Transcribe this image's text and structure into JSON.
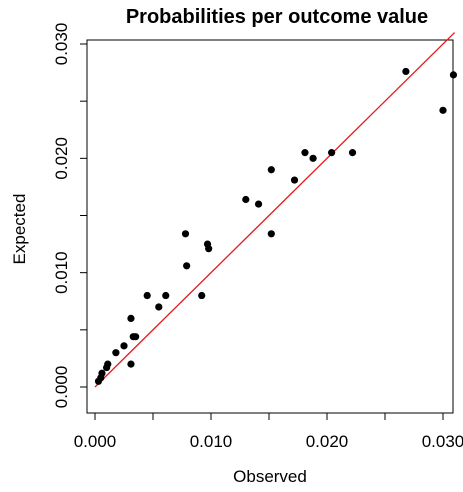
{
  "chart_data": {
    "type": "scatter",
    "title": "Probabilities per outcome value",
    "xlabel": "Observed",
    "ylabel": "Expected",
    "xlim": [
      0,
      0.031
    ],
    "ylim": [
      0,
      0.03
    ],
    "x_ticks": [
      "0.000",
      "0.010",
      "0.020",
      "0.030"
    ],
    "y_ticks": [
      "0.000",
      "0.010",
      "0.020",
      "0.030"
    ],
    "x_tick_minor": [
      0.005,
      0.015,
      0.025
    ],
    "y_tick_minor": [
      0.005,
      0.015,
      0.025
    ],
    "grid": false,
    "reference_line": {
      "from": [
        0,
        0
      ],
      "to": [
        0.031,
        0.031
      ],
      "color": "#e31a1c"
    },
    "point_color": "#000000",
    "points": [
      {
        "x": 0.0003,
        "y": 0.0005
      },
      {
        "x": 0.0005,
        "y": 0.0008
      },
      {
        "x": 0.0006,
        "y": 0.0012
      },
      {
        "x": 0.001,
        "y": 0.0017
      },
      {
        "x": 0.0011,
        "y": 0.002
      },
      {
        "x": 0.0018,
        "y": 0.003
      },
      {
        "x": 0.0025,
        "y": 0.0036
      },
      {
        "x": 0.0031,
        "y": 0.002
      },
      {
        "x": 0.0031,
        "y": 0.006
      },
      {
        "x": 0.0033,
        "y": 0.0044
      },
      {
        "x": 0.0035,
        "y": 0.0044
      },
      {
        "x": 0.0045,
        "y": 0.008
      },
      {
        "x": 0.0055,
        "y": 0.007
      },
      {
        "x": 0.0061,
        "y": 0.008
      },
      {
        "x": 0.0078,
        "y": 0.0134
      },
      {
        "x": 0.0079,
        "y": 0.0106
      },
      {
        "x": 0.0092,
        "y": 0.008
      },
      {
        "x": 0.0097,
        "y": 0.0125
      },
      {
        "x": 0.0098,
        "y": 0.0121
      },
      {
        "x": 0.013,
        "y": 0.0164
      },
      {
        "x": 0.0141,
        "y": 0.016
      },
      {
        "x": 0.0152,
        "y": 0.0134
      },
      {
        "x": 0.0152,
        "y": 0.019
      },
      {
        "x": 0.0172,
        "y": 0.0181
      },
      {
        "x": 0.0181,
        "y": 0.0205
      },
      {
        "x": 0.0188,
        "y": 0.02
      },
      {
        "x": 0.0204,
        "y": 0.0205
      },
      {
        "x": 0.0222,
        "y": 0.0205
      },
      {
        "x": 0.0268,
        "y": 0.0276
      },
      {
        "x": 0.03,
        "y": 0.0242
      },
      {
        "x": 0.0309,
        "y": 0.0273
      }
    ]
  }
}
